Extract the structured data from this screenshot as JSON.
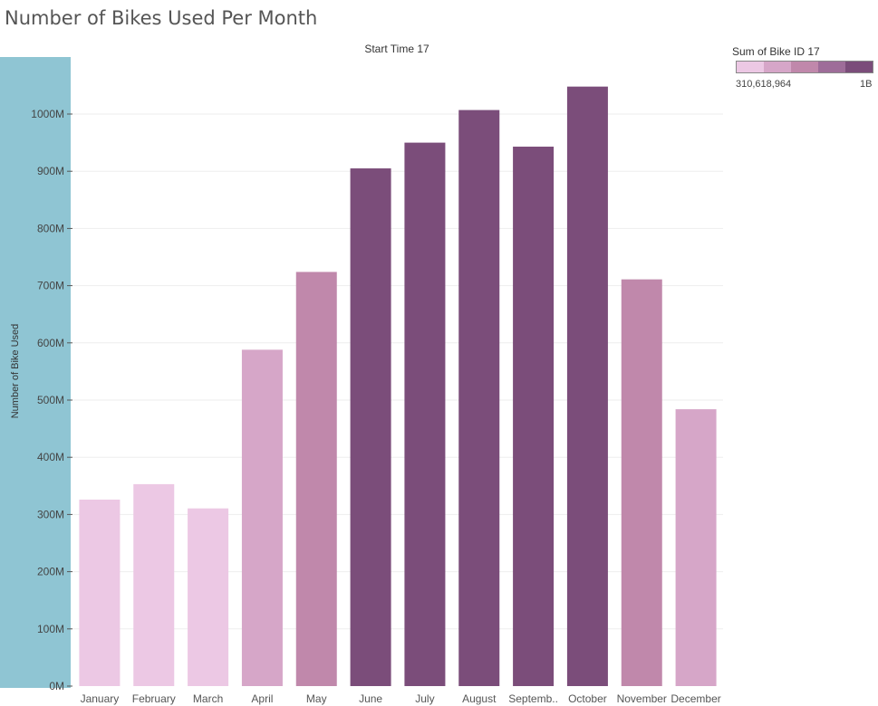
{
  "page": {
    "title": "Number of Bikes Used Per Month",
    "column_header": "Start Time 17"
  },
  "legend": {
    "title": "Sum of Bike ID 17",
    "min_label": "310,618,964",
    "max_label": "1B",
    "colors": [
      "#ecc8e4",
      "#d6a6c8",
      "#c088ab",
      "#9e6d99",
      "#7b4d7a"
    ]
  },
  "colors": {
    "ylabel_band": "#8fc5d3",
    "grid": "#eeeeee"
  },
  "chart_data": {
    "type": "bar",
    "title": "Number of Bikes Used Per Month",
    "xlabel": "",
    "ylabel": "Number of Bike Used",
    "categories": [
      "January",
      "February",
      "March",
      "April",
      "May",
      "June",
      "July",
      "August",
      "Septemb..",
      "October",
      "November",
      "December"
    ],
    "values": [
      326000000,
      353000000,
      310618964,
      588000000,
      724000000,
      905000000,
      950000000,
      1007000000,
      943000000,
      1048000000,
      711000000,
      484000000
    ],
    "bar_colors": [
      "#ecc8e4",
      "#ecc8e4",
      "#ecc8e4",
      "#d6a6c8",
      "#c088ab",
      "#7b4d7a",
      "#7b4d7a",
      "#7b4d7a",
      "#7b4d7a",
      "#7b4d7a",
      "#c088ab",
      "#d6a6c8"
    ],
    "yticks": [
      0,
      100000000,
      200000000,
      300000000,
      400000000,
      500000000,
      600000000,
      700000000,
      800000000,
      900000000,
      1000000000
    ],
    "ytick_labels": [
      "0M",
      "100M",
      "200M",
      "300M",
      "400M",
      "500M",
      "600M",
      "700M",
      "800M",
      "900M",
      "1000M"
    ],
    "ylim": [
      0,
      1100000000
    ],
    "grid": true,
    "legend_position": "top-right"
  }
}
